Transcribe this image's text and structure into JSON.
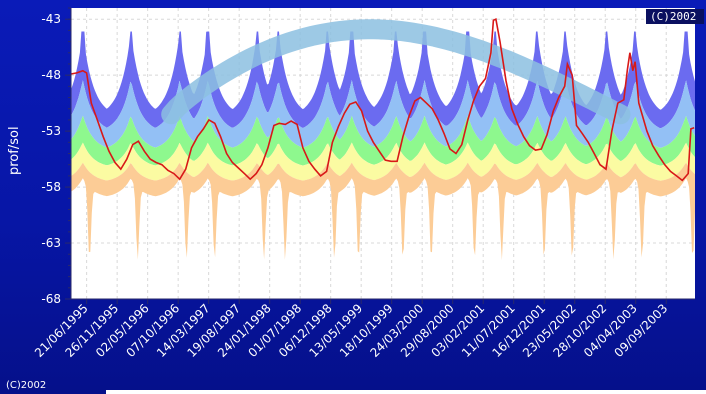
{
  "watermark_top": "(C)2002",
  "watermark_bottom": "(C)2002",
  "colors": {
    "band_blue": "#6b6bf0",
    "band_lightblue": "#93c0f5",
    "band_green": "#8ef88e",
    "band_yellow": "#fbfba2",
    "band_orange": "#fccc96",
    "arc": "#8cc0e0",
    "line": "#d81818",
    "grid": "#d8d8d8"
  },
  "chart_data": {
    "type": "area",
    "title": "",
    "xlabel": "",
    "ylabel": "prof/sol",
    "ylim": [
      -68,
      -42
    ],
    "yticks": [
      -43,
      -48,
      -53,
      -58,
      -63,
      -68
    ],
    "xlim": [
      "1995-04-01",
      "2004-02-05"
    ],
    "x_tick_labels": [
      "21/06/1995",
      "26/11/1995",
      "02/05/1996",
      "07/10/1996",
      "14/03/1997",
      "19/08/1997",
      "24/01/1998",
      "01/07/1998",
      "06/12/1998",
      "13/05/1999",
      "18/10/1999",
      "24/03/2000",
      "29/08/2000",
      "03/02/2001",
      "11/07/2001",
      "16/12/2001",
      "23/05/2002",
      "28/10/2002",
      "04/04/2003",
      "09/09/2003"
    ],
    "grid": true,
    "legend": "none",
    "bands_note": "stacked percentile bands (blue, light blue, green, yellow, orange) with seasonal peaks",
    "series": [
      {
        "values": [
          [
            "1995-04-01",
            -47.9
          ],
          [
            "1995-05-01",
            -47.8
          ],
          [
            "1995-06-01",
            -47.6
          ],
          [
            "1995-06-21",
            -47.8
          ],
          [
            "1995-07-15",
            -50.5
          ],
          [
            "1995-08-15",
            -52.0
          ],
          [
            "1995-09-15",
            -53.5
          ],
          [
            "1995-10-15",
            -54.8
          ],
          [
            "1995-11-15",
            -55.8
          ],
          [
            "1995-12-15",
            -56.4
          ],
          [
            "1996-01-15",
            -55.5
          ],
          [
            "1996-02-15",
            -54.2
          ],
          [
            "1996-03-15",
            -53.9
          ],
          [
            "1996-04-15",
            -54.8
          ],
          [
            "1996-05-15",
            -55.5
          ],
          [
            "1996-06-15",
            -55.8
          ],
          [
            "1996-07-15",
            -56.0
          ],
          [
            "1996-08-15",
            -56.5
          ],
          [
            "1996-09-15",
            -56.8
          ],
          [
            "1996-10-15",
            -57.3
          ],
          [
            "1996-11-15",
            -56.4
          ],
          [
            "1996-12-15",
            -54.5
          ],
          [
            "1997-01-15",
            -53.5
          ],
          [
            "1997-02-15",
            -52.8
          ],
          [
            "1997-03-15",
            -52.0
          ],
          [
            "1997-04-15",
            -52.3
          ],
          [
            "1997-05-15",
            -53.5
          ],
          [
            "1997-06-15",
            -55.0
          ],
          [
            "1997-07-15",
            -55.8
          ],
          [
            "1997-08-15",
            -56.3
          ],
          [
            "1997-09-15",
            -56.8
          ],
          [
            "1997-10-15",
            -57.3
          ],
          [
            "1997-11-15",
            -56.8
          ],
          [
            "1997-12-15",
            -56.0
          ],
          [
            "1998-01-15",
            -54.5
          ],
          [
            "1998-02-15",
            -52.5
          ],
          [
            "1998-03-15",
            -52.3
          ],
          [
            "1998-04-15",
            -52.4
          ],
          [
            "1998-05-15",
            -52.1
          ],
          [
            "1998-06-15",
            -52.4
          ],
          [
            "1998-07-15",
            -54.5
          ],
          [
            "1998-08-15",
            -55.7
          ],
          [
            "1998-09-15",
            -56.4
          ],
          [
            "1998-10-15",
            -57.0
          ],
          [
            "1998-11-15",
            -56.6
          ],
          [
            "1998-12-15",
            -54.0
          ],
          [
            "1999-01-15",
            -52.6
          ],
          [
            "1999-02-15",
            -51.4
          ],
          [
            "1999-03-15",
            -50.6
          ],
          [
            "1999-04-15",
            -50.4
          ],
          [
            "1999-05-15",
            -51.2
          ],
          [
            "1999-06-15",
            -53.0
          ],
          [
            "1999-07-15",
            -54.0
          ],
          [
            "1999-08-15",
            -54.8
          ],
          [
            "1999-09-15",
            -55.6
          ],
          [
            "1999-10-15",
            -55.7
          ],
          [
            "1999-11-15",
            -55.7
          ],
          [
            "1999-12-15",
            -53.5
          ],
          [
            "2000-01-15",
            -51.7
          ],
          [
            "2000-02-15",
            -50.3
          ],
          [
            "2000-03-15",
            -50.0
          ],
          [
            "2000-04-15",
            -50.5
          ],
          [
            "2000-05-15",
            -51.0
          ],
          [
            "2000-06-15",
            -52.0
          ],
          [
            "2000-07-15",
            -53.2
          ],
          [
            "2000-08-15",
            -54.6
          ],
          [
            "2000-09-15",
            -55.0
          ],
          [
            "2000-10-15",
            -54.2
          ],
          [
            "2000-11-15",
            -52.0
          ],
          [
            "2000-12-15",
            -50.3
          ],
          [
            "2001-01-15",
            -49.0
          ],
          [
            "2001-02-15",
            -48.3
          ],
          [
            "2001-03-15",
            -46.0
          ],
          [
            "2001-03-28",
            -43.1
          ],
          [
            "2001-04-10",
            -43.0
          ],
          [
            "2001-05-01",
            -45.0
          ],
          [
            "2001-06-01",
            -48.5
          ],
          [
            "2001-07-01",
            -51.0
          ],
          [
            "2001-08-01",
            -52.4
          ],
          [
            "2001-09-01",
            -53.5
          ],
          [
            "2001-10-01",
            -54.3
          ],
          [
            "2001-11-01",
            -54.7
          ],
          [
            "2001-12-01",
            -54.6
          ],
          [
            "2001-12-31",
            -53.3
          ],
          [
            "2002-02-01",
            -51.2
          ],
          [
            "2002-03-01",
            -50.0
          ],
          [
            "2002-04-01",
            -49.0
          ],
          [
            "2002-04-15",
            -47.0
          ],
          [
            "2002-05-10",
            -48.0
          ],
          [
            "2002-06-01",
            -52.5
          ],
          [
            "2002-07-01",
            -53.2
          ],
          [
            "2002-08-01",
            -54.0
          ],
          [
            "2002-09-01",
            -55.0
          ],
          [
            "2002-10-01",
            -56.0
          ],
          [
            "2002-11-01",
            -56.4
          ],
          [
            "2002-12-01",
            -53.0
          ],
          [
            "2003-01-01",
            -50.5
          ],
          [
            "2003-02-01",
            -50.2
          ],
          [
            "2003-02-20",
            -47.5
          ],
          [
            "2003-03-05",
            -46.0
          ],
          [
            "2003-03-20",
            -47.6
          ],
          [
            "2003-04-01",
            -46.8
          ],
          [
            "2003-04-20",
            -50.5
          ],
          [
            "2003-06-01",
            -53.0
          ],
          [
            "2003-07-01",
            -54.3
          ],
          [
            "2003-08-01",
            -55.2
          ],
          [
            "2003-09-01",
            -56.0
          ],
          [
            "2003-10-01",
            -56.6
          ],
          [
            "2003-11-01",
            -57.0
          ],
          [
            "2003-12-01",
            -57.4
          ],
          [
            "2004-01-01",
            -56.8
          ],
          [
            "2004-01-15",
            -52.8
          ],
          [
            "2004-02-01",
            -52.7
          ]
        ]
      }
    ]
  }
}
